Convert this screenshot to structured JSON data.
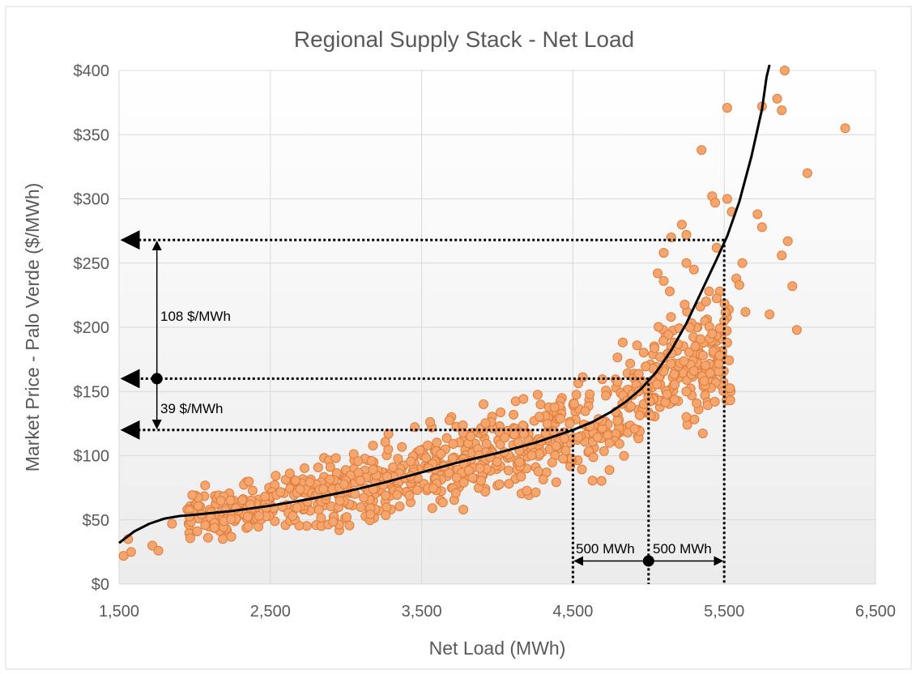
{
  "chart_data": {
    "type": "scatter",
    "title": "Regional Supply Stack - Net Load",
    "xlabel": "Net Load (MWh)",
    "ylabel": "Market Price - Palo Verde ($/MWh)",
    "xlim": [
      1500,
      6500
    ],
    "ylim": [
      0,
      400
    ],
    "xticks": [
      1500,
      2500,
      3500,
      4500,
      5500,
      6500
    ],
    "xtick_labels": [
      "1,500",
      "2,500",
      "3,500",
      "4,500",
      "5,500",
      "6,500"
    ],
    "yticks": [
      0,
      50,
      100,
      150,
      200,
      250,
      300,
      350,
      400
    ],
    "ytick_labels": [
      "$0",
      "$50",
      "$100",
      "$150",
      "$200",
      "$250",
      "$300",
      "$350",
      "$400"
    ],
    "grid": true,
    "colors": {
      "marker_fill": "#f4a66e",
      "marker_edge": "#e07b39",
      "curve": "#000000",
      "grid": "#d9d9d9"
    },
    "scatter_outliers": [
      [
        1530,
        22
      ],
      [
        1580,
        25
      ],
      [
        1560,
        35
      ],
      [
        1720,
        30
      ],
      [
        1760,
        26
      ],
      [
        1850,
        47
      ],
      [
        5900,
        400
      ],
      [
        5750,
        372
      ],
      [
        5850,
        378
      ],
      [
        5880,
        369
      ],
      [
        6300,
        355
      ],
      [
        5520,
        371
      ],
      [
        5350,
        338
      ],
      [
        6050,
        320
      ],
      [
        5520,
        300
      ],
      [
        5420,
        302
      ],
      [
        5440,
        297
      ],
      [
        5550,
        290
      ],
      [
        5720,
        288
      ],
      [
        5750,
        278
      ],
      [
        5920,
        267
      ],
      [
        5880,
        256
      ],
      [
        5150,
        270
      ],
      [
        5220,
        280
      ],
      [
        5250,
        272
      ],
      [
        5450,
        262
      ],
      [
        5620,
        250
      ],
      [
        5580,
        238
      ],
      [
        5600,
        233
      ],
      [
        5950,
        232
      ],
      [
        5640,
        212
      ],
      [
        5800,
        210
      ],
      [
        5980,
        198
      ],
      [
        5100,
        258
      ],
      [
        5060,
        242
      ],
      [
        5100,
        236
      ],
      [
        5140,
        228
      ],
      [
        5300,
        245
      ],
      [
        5250,
        250
      ],
      [
        5400,
        228
      ],
      [
        5380,
        220
      ],
      [
        5420,
        195
      ],
      [
        5500,
        205
      ],
      [
        5520,
        188
      ],
      [
        5470,
        178
      ],
      [
        5360,
        178
      ],
      [
        5300,
        166
      ],
      [
        5250,
        150
      ]
    ],
    "scatter_band": {
      "x_range": [
        1950,
        5550
      ],
      "center_curve": "supply_curve",
      "spread_per_100": 28,
      "count": 900
    },
    "supply_curve": [
      [
        1500,
        32
      ],
      [
        1600,
        41
      ],
      [
        1700,
        47
      ],
      [
        1800,
        51
      ],
      [
        1900,
        53
      ],
      [
        2000,
        54
      ],
      [
        2250,
        57
      ],
      [
        2500,
        61
      ],
      [
        2750,
        66
      ],
      [
        3000,
        72
      ],
      [
        3250,
        79
      ],
      [
        3500,
        87
      ],
      [
        3750,
        95
      ],
      [
        4000,
        102
      ],
      [
        4250,
        110
      ],
      [
        4500,
        120
      ],
      [
        4625,
        126
      ],
      [
        4750,
        134
      ],
      [
        4850,
        142
      ],
      [
        4950,
        152
      ],
      [
        5050,
        165
      ],
      [
        5150,
        182
      ],
      [
        5250,
        203
      ],
      [
        5350,
        228
      ],
      [
        5450,
        253
      ],
      [
        5520,
        271
      ],
      [
        5600,
        298
      ],
      [
        5680,
        333
      ],
      [
        5750,
        370
      ],
      [
        5780,
        395
      ],
      [
        5800,
        410
      ]
    ],
    "reference_lines": {
      "price_low": 120,
      "price_mid": 160,
      "price_high": 268,
      "load_low": 4500,
      "load_mid": 5000,
      "load_high": 5500,
      "arrow_x": 1750,
      "load_arrow_y": 18
    },
    "annotations": {
      "upper_delta": "108 $/MWh",
      "lower_delta": "39 $/MWh",
      "left_load_delta": "500 MWh",
      "right_load_delta": "500 MWh"
    }
  }
}
